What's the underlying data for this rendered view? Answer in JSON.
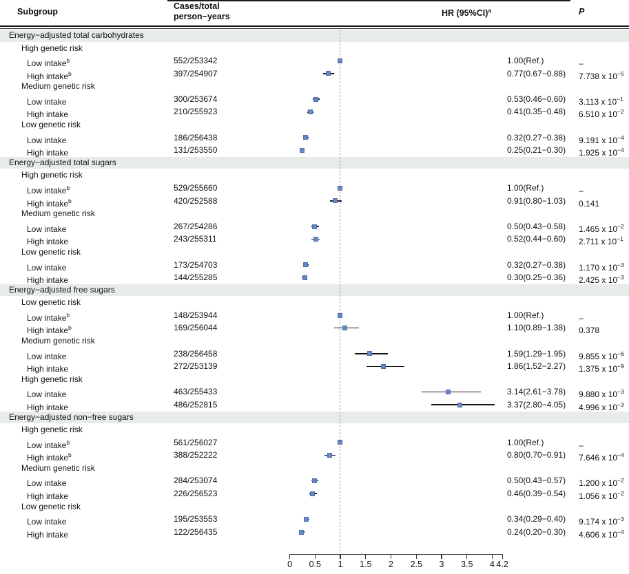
{
  "header": {
    "col_subgroup": "Subgroup",
    "col_cases_line1": "Cases/total",
    "col_cases_line2": "person−years",
    "col_hr": "HR (95%CI)",
    "col_hr_sup": "a",
    "col_p": "P"
  },
  "axis": {
    "ticks": [
      "0",
      "0.5",
      "1",
      "1.5",
      "2",
      "2.5",
      "3",
      "3.5",
      "4",
      "4.2"
    ],
    "tick_values": [
      0,
      0.5,
      1,
      1.5,
      2,
      2.5,
      3,
      3.5,
      4,
      4.2
    ],
    "min": 0,
    "max": 4.2,
    "reference_line": 1.0
  },
  "colors": {
    "marker_fill": "#6787c6",
    "marker_border": "#4e6ea6",
    "ci_line": "#141414",
    "section_band": "#e8ece9",
    "reference_dash": "#999999"
  },
  "rows": [
    {
      "t": "s",
      "label": "Energy−adjusted total carbohydrates"
    },
    {
      "t": "g",
      "label": "High genetic risk"
    },
    {
      "t": "d",
      "label": "Low intake",
      "sup": "b",
      "cases": "552/253342",
      "hr": 1.0,
      "lo": null,
      "hi": null,
      "hr_text": "1.00(Ref.)",
      "p": "–",
      "p_exp": ""
    },
    {
      "t": "d",
      "label": "High intake",
      "sup": "b",
      "cases": "397/254907",
      "hr": 0.77,
      "lo": 0.67,
      "hi": 0.88,
      "hr_text": "0.77(0.67−0.88)",
      "p": "7.738 x 10",
      "p_exp": "−5"
    },
    {
      "t": "g",
      "label": "Medium genetic risk"
    },
    {
      "t": "d",
      "label": "Low intake",
      "sup": "",
      "cases": "300/253674",
      "hr": 0.53,
      "lo": 0.46,
      "hi": 0.6,
      "hr_text": "0.53(0.46−0.60)",
      "p": "3.113 x 10",
      "p_exp": "−1"
    },
    {
      "t": "d",
      "label": "High intake",
      "sup": "",
      "cases": "210/255923",
      "hr": 0.41,
      "lo": 0.35,
      "hi": 0.48,
      "hr_text": "0.41(0.35−0.48)",
      "p": "6.510 x 10",
      "p_exp": "−2"
    },
    {
      "t": "g",
      "label": "Low genetic risk"
    },
    {
      "t": "d",
      "label": "Low intake",
      "sup": "",
      "cases": "186/256438",
      "hr": 0.32,
      "lo": 0.27,
      "hi": 0.38,
      "hr_text": "0.32(0.27−0.38)",
      "p": "9.191 x 10",
      "p_exp": "−4"
    },
    {
      "t": "d",
      "label": "High intake",
      "sup": "",
      "cases": "131/253550",
      "hr": 0.25,
      "lo": 0.21,
      "hi": 0.3,
      "hr_text": "0.25(0.21−0.30)",
      "p": "1.925 x 10",
      "p_exp": "−4"
    },
    {
      "t": "s",
      "label": "Energy−adjusted total sugars"
    },
    {
      "t": "g",
      "label": "High genetic risk"
    },
    {
      "t": "d",
      "label": "Low intake",
      "sup": "b",
      "cases": "529/255660",
      "hr": 1.0,
      "lo": null,
      "hi": null,
      "hr_text": "1.00(Ref.)",
      "p": "–",
      "p_exp": ""
    },
    {
      "t": "d",
      "label": "High intake",
      "sup": "b",
      "cases": "420/252588",
      "hr": 0.91,
      "lo": 0.8,
      "hi": 1.03,
      "hr_text": "0.91(0.80−1.03)",
      "p": "0.141",
      "p_exp": ""
    },
    {
      "t": "g",
      "label": "Medium genetic risk"
    },
    {
      "t": "d",
      "label": "Low intake",
      "sup": "",
      "cases": "267/254286",
      "hr": 0.5,
      "lo": 0.43,
      "hi": 0.58,
      "hr_text": "0.50(0.43−0.58)",
      "p": "1.465 x 10",
      "p_exp": "−2"
    },
    {
      "t": "d",
      "label": "High intake",
      "sup": "",
      "cases": "243/255311",
      "hr": 0.52,
      "lo": 0.44,
      "hi": 0.6,
      "hr_text": "0.52(0.44−0.60)",
      "p": "2.711 x 10",
      "p_exp": "−1"
    },
    {
      "t": "g",
      "label": "Low genetic risk"
    },
    {
      "t": "d",
      "label": "Low intake",
      "sup": "",
      "cases": "173/254703",
      "hr": 0.32,
      "lo": 0.27,
      "hi": 0.38,
      "hr_text": "0.32(0.27−0.38)",
      "p": "1.170 x 10",
      "p_exp": "−3"
    },
    {
      "t": "d",
      "label": "High intake",
      "sup": "",
      "cases": "144/255285",
      "hr": 0.3,
      "lo": 0.25,
      "hi": 0.36,
      "hr_text": "0.30(0.25−0.36)",
      "p": "2.425 x 10",
      "p_exp": "−3"
    },
    {
      "t": "s",
      "label": "Energy−adjusted free sugars"
    },
    {
      "t": "g",
      "label": "Low genetic risk"
    },
    {
      "t": "d",
      "label": "Low intake",
      "sup": "b",
      "cases": "148/253944",
      "hr": 1.0,
      "lo": null,
      "hi": null,
      "hr_text": "1.00(Ref.)",
      "p": "–",
      "p_exp": ""
    },
    {
      "t": "d",
      "label": "High intake",
      "sup": "b",
      "cases": "169/256044",
      "hr": 1.1,
      "lo": 0.89,
      "hi": 1.38,
      "hr_text": "1.10(0.89−1.38)",
      "p": "0.378",
      "p_exp": ""
    },
    {
      "t": "g",
      "label": "Medium genetic risk"
    },
    {
      "t": "d",
      "label": "Low intake",
      "sup": "",
      "cases": "238/256458",
      "hr": 1.59,
      "lo": 1.29,
      "hi": 1.95,
      "hr_text": "1.59(1.29−1.95)",
      "p": "9.855 x 10",
      "p_exp": "−6"
    },
    {
      "t": "d",
      "label": "High intake",
      "sup": "",
      "cases": "272/253139",
      "hr": 1.86,
      "lo": 1.52,
      "hi": 2.27,
      "hr_text": "1.86(1.52−2.27)",
      "p": "1.375 x 10",
      "p_exp": "−9"
    },
    {
      "t": "g",
      "label": "High genetic risk"
    },
    {
      "t": "d",
      "label": "Low intake",
      "sup": "",
      "cases": "463/255433",
      "hr": 3.14,
      "lo": 2.61,
      "hi": 3.78,
      "hr_text": "3.14(2.61−3.78)",
      "p": "9.880 x 10",
      "p_exp": "−3"
    },
    {
      "t": "d",
      "label": "High intake",
      "sup": "",
      "cases": "486/252815",
      "hr": 3.37,
      "lo": 2.8,
      "hi": 4.05,
      "hr_text": "3.37(2.80−4.05)",
      "p": "4.996 x 10",
      "p_exp": "−3"
    },
    {
      "t": "s",
      "label": "Energy−adjusted non−free sugars"
    },
    {
      "t": "g",
      "label": "High genetic risk"
    },
    {
      "t": "d",
      "label": "Low intake",
      "sup": "b",
      "cases": "561/256027",
      "hr": 1.0,
      "lo": null,
      "hi": null,
      "hr_text": "1.00(Ref.)",
      "p": "–",
      "p_exp": ""
    },
    {
      "t": "d",
      "label": "High intake",
      "sup": "b",
      "cases": "388/252222",
      "hr": 0.8,
      "lo": 0.7,
      "hi": 0.91,
      "hr_text": "0.80(0.70−0.91)",
      "p": "7.646 x 10",
      "p_exp": "−4"
    },
    {
      "t": "g",
      "label": "Medium genetic risk"
    },
    {
      "t": "d",
      "label": "Low intake",
      "sup": "",
      "cases": "284/253074",
      "hr": 0.5,
      "lo": 0.43,
      "hi": 0.57,
      "hr_text": "0.50(0.43−0.57)",
      "p": "1.200 x 10",
      "p_exp": "−2"
    },
    {
      "t": "d",
      "label": "High intake",
      "sup": "",
      "cases": "226/256523",
      "hr": 0.46,
      "lo": 0.39,
      "hi": 0.54,
      "hr_text": "0.46(0.39−0.54)",
      "p": "1.056 x 10",
      "p_exp": "−2"
    },
    {
      "t": "g",
      "label": "Low genetic risk"
    },
    {
      "t": "d",
      "label": "Low intake",
      "sup": "",
      "cases": "195/253553",
      "hr": 0.34,
      "lo": 0.29,
      "hi": 0.4,
      "hr_text": "0.34(0.29−0.40)",
      "p": "9.174 x 10",
      "p_exp": "−3"
    },
    {
      "t": "d",
      "label": "High intake",
      "sup": "",
      "cases": "122/256435",
      "hr": 0.24,
      "lo": 0.2,
      "hi": 0.3,
      "hr_text": "0.24(0.20−0.30)",
      "p": "4.606 x 10",
      "p_exp": "−4"
    }
  ],
  "chart_data": {
    "type": "forest",
    "title": "",
    "xlabel": "",
    "xlim": [
      0,
      4.2
    ],
    "x_ticks": [
      0,
      0.5,
      1,
      1.5,
      2,
      2.5,
      3,
      3.5,
      4,
      4.2
    ],
    "reference_line": 1.0,
    "legend": "none",
    "groups": [
      {
        "section": "Energy−adjusted total carbohydrates",
        "points": [
          {
            "label": "High genetic risk / Low intake",
            "hr": 1.0,
            "ci": [
              1.0,
              1.0
            ],
            "ref": true
          },
          {
            "label": "High genetic risk / High intake",
            "hr": 0.77,
            "ci": [
              0.67,
              0.88
            ]
          },
          {
            "label": "Medium genetic risk / Low intake",
            "hr": 0.53,
            "ci": [
              0.46,
              0.6
            ]
          },
          {
            "label": "Medium genetic risk / High intake",
            "hr": 0.41,
            "ci": [
              0.35,
              0.48
            ]
          },
          {
            "label": "Low genetic risk / Low intake",
            "hr": 0.32,
            "ci": [
              0.27,
              0.38
            ]
          },
          {
            "label": "Low genetic risk / High intake",
            "hr": 0.25,
            "ci": [
              0.21,
              0.3
            ]
          }
        ]
      },
      {
        "section": "Energy−adjusted total sugars",
        "points": [
          {
            "label": "High genetic risk / Low intake",
            "hr": 1.0,
            "ci": [
              1.0,
              1.0
            ],
            "ref": true
          },
          {
            "label": "High genetic risk / High intake",
            "hr": 0.91,
            "ci": [
              0.8,
              1.03
            ]
          },
          {
            "label": "Medium genetic risk / Low intake",
            "hr": 0.5,
            "ci": [
              0.43,
              0.58
            ]
          },
          {
            "label": "Medium genetic risk / High intake",
            "hr": 0.52,
            "ci": [
              0.44,
              0.6
            ]
          },
          {
            "label": "Low genetic risk / Low intake",
            "hr": 0.32,
            "ci": [
              0.27,
              0.38
            ]
          },
          {
            "label": "Low genetic risk / High intake",
            "hr": 0.3,
            "ci": [
              0.25,
              0.36
            ]
          }
        ]
      },
      {
        "section": "Energy−adjusted free sugars",
        "points": [
          {
            "label": "Low genetic risk / Low intake",
            "hr": 1.0,
            "ci": [
              1.0,
              1.0
            ],
            "ref": true
          },
          {
            "label": "Low genetic risk / High intake",
            "hr": 1.1,
            "ci": [
              0.89,
              1.38
            ]
          },
          {
            "label": "Medium genetic risk / Low intake",
            "hr": 1.59,
            "ci": [
              1.29,
              1.95
            ]
          },
          {
            "label": "Medium genetic risk / High intake",
            "hr": 1.86,
            "ci": [
              1.52,
              2.27
            ]
          },
          {
            "label": "High genetic risk / Low intake",
            "hr": 3.14,
            "ci": [
              2.61,
              3.78
            ]
          },
          {
            "label": "High genetic risk / High intake",
            "hr": 3.37,
            "ci": [
              2.8,
              4.05
            ]
          }
        ]
      },
      {
        "section": "Energy−adjusted non−free sugars",
        "points": [
          {
            "label": "High genetic risk / Low intake",
            "hr": 1.0,
            "ci": [
              1.0,
              1.0
            ],
            "ref": true
          },
          {
            "label": "High genetic risk / High intake",
            "hr": 0.8,
            "ci": [
              0.7,
              0.91
            ]
          },
          {
            "label": "Medium genetic risk / Low intake",
            "hr": 0.5,
            "ci": [
              0.43,
              0.57
            ]
          },
          {
            "label": "Medium genetic risk / High intake",
            "hr": 0.46,
            "ci": [
              0.39,
              0.54
            ]
          },
          {
            "label": "Low genetic risk / Low intake",
            "hr": 0.34,
            "ci": [
              0.29,
              0.4
            ]
          },
          {
            "label": "Low genetic risk / High intake",
            "hr": 0.24,
            "ci": [
              0.2,
              0.3
            ]
          }
        ]
      }
    ]
  }
}
